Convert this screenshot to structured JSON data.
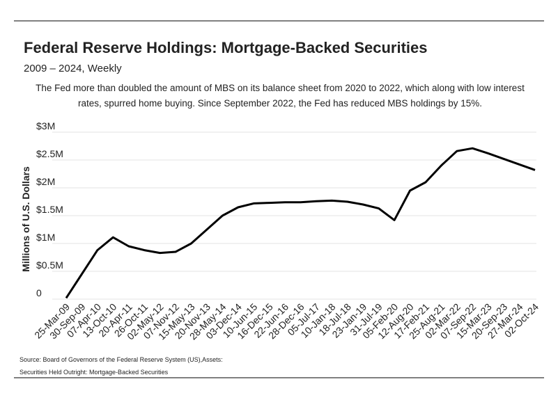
{
  "chart_data": {
    "type": "line",
    "title": "Federal Reserve Holdings: Mortgage-Backed Securities",
    "subtitle": "2009 – 2024, Weekly",
    "description": [
      "The Fed more than doubled the amount of MBS on its balance sheet from 2020 to 2022, which along with low interest",
      "rates, spurred home buying. Since September 2022, the Fed has reduced MBS holdings by 15%."
    ],
    "y_label": "Millions of U.S. Dollars",
    "source": [
      "Source:  Board of Governors of the Federal Reserve System (US),Assets:",
      "Securities Held Outright: Mortgage-Backed Securities"
    ],
    "categories": [
      "25-Mar-09",
      "30-Sep-09",
      "07-Apr-10",
      "13-Oct-10",
      "20-Apr-11",
      "26-Oct-11",
      "02-May-12",
      "07-Nov-12",
      "15-May-13",
      "20-Nov-13",
      "28-May-14",
      "03-Dec-14",
      "10-Jun-15",
      "16-Dec-15",
      "22-Jun-16",
      "28-Dec-16",
      "05-Jul-17",
      "10-Jan-18",
      "18-Jul-18",
      "23-Jan-19",
      "31-Jul-19",
      "05-Feb-20",
      "12-Aug-20",
      "17-Feb-21",
      "25-Aug-21",
      "02-Mar-22",
      "07-Sep-22",
      "15-Mar-23",
      "20-Sep-23",
      "27-Mar-24",
      "02-Oct-24"
    ],
    "series": [
      {
        "name": "Mortgage-Backed Securities",
        "color": "#000000",
        "values": [
          20000,
          450000,
          880000,
          1110000,
          950000,
          880000,
          830000,
          850000,
          1000000,
          1250000,
          1500000,
          1650000,
          1720000,
          1730000,
          1740000,
          1740000,
          1760000,
          1770000,
          1750000,
          1700000,
          1630000,
          1420000,
          1950000,
          2100000,
          2400000,
          2660000,
          2710000,
          2620000,
          2520000,
          2420000,
          2320000
        ]
      }
    ],
    "ylim": [
      0,
      3000000
    ],
    "yticks": [
      {
        "value": 0,
        "label": "0"
      },
      {
        "value": 500000,
        "label": "$0.5M"
      },
      {
        "value": 1000000,
        "label": "$1M"
      },
      {
        "value": 1500000,
        "label": "$1.5M"
      },
      {
        "value": 2000000,
        "label": "$2M"
      },
      {
        "value": 2500000,
        "label": "$2.5M"
      },
      {
        "value": 3000000,
        "label": "$3M"
      }
    ],
    "grid": true
  }
}
